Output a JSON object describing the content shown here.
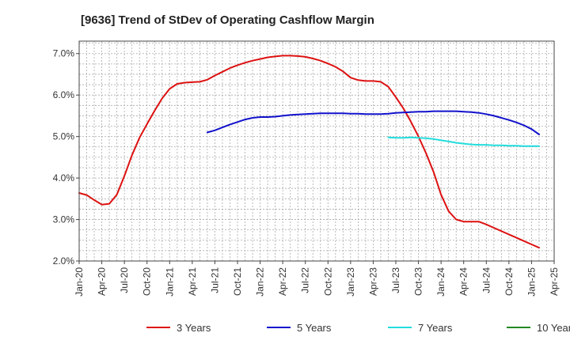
{
  "chart_data": {
    "type": "line",
    "title": "[9636]  Trend of StDev of Operating Cashflow Margin",
    "xlabel": "",
    "ylabel": "",
    "ylim": [
      2.0,
      7.3
    ],
    "yticks": [
      2.0,
      3.0,
      4.0,
      5.0,
      6.0,
      7.0
    ],
    "ytick_labels": [
      "2.0%",
      "3.0%",
      "4.0%",
      "5.0%",
      "6.0%",
      "7.0%"
    ],
    "xticks": [
      "Jan-20",
      "Apr-20",
      "Jul-20",
      "Oct-20",
      "Jan-21",
      "Apr-21",
      "Jul-21",
      "Oct-21",
      "Jan-22",
      "Apr-22",
      "Jul-22",
      "Oct-22",
      "Jan-23",
      "Apr-23",
      "Jul-23",
      "Oct-23",
      "Jan-24",
      "Apr-24",
      "Jul-24",
      "Oct-24",
      "Jan-25",
      "Apr-25"
    ],
    "grid": true,
    "legend_position": "bottom",
    "series": [
      {
        "name": "3 Years",
        "color": "#dd1111",
        "points": [
          [
            "Jan-20",
            3.64
          ],
          [
            "Feb-20",
            3.59
          ],
          [
            "Mar-20",
            3.47
          ],
          [
            "Apr-20",
            3.36
          ],
          [
            "May-20",
            3.38
          ],
          [
            "Jun-20",
            3.6
          ],
          [
            "Jul-20",
            4.05
          ],
          [
            "Aug-20",
            4.55
          ],
          [
            "Sep-20",
            4.97
          ],
          [
            "Oct-20",
            5.3
          ],
          [
            "Nov-20",
            5.62
          ],
          [
            "Dec-20",
            5.92
          ],
          [
            "Jan-21",
            6.15
          ],
          [
            "Feb-21",
            6.27
          ],
          [
            "Mar-21",
            6.3
          ],
          [
            "Apr-21",
            6.31
          ],
          [
            "May-21",
            6.32
          ],
          [
            "Jun-21",
            6.37
          ],
          [
            "Jul-21",
            6.47
          ],
          [
            "Aug-21",
            6.56
          ],
          [
            "Sep-21",
            6.65
          ],
          [
            "Oct-21",
            6.72
          ],
          [
            "Nov-21",
            6.78
          ],
          [
            "Dec-21",
            6.83
          ],
          [
            "Jan-22",
            6.87
          ],
          [
            "Feb-22",
            6.91
          ],
          [
            "Mar-22",
            6.93
          ],
          [
            "Apr-22",
            6.95
          ],
          [
            "May-22",
            6.95
          ],
          [
            "Jun-22",
            6.94
          ],
          [
            "Jul-22",
            6.92
          ],
          [
            "Aug-22",
            6.88
          ],
          [
            "Sep-22",
            6.83
          ],
          [
            "Oct-22",
            6.76
          ],
          [
            "Nov-22",
            6.68
          ],
          [
            "Dec-22",
            6.57
          ],
          [
            "Jan-23",
            6.42
          ],
          [
            "Feb-23",
            6.36
          ],
          [
            "Mar-23",
            6.34
          ],
          [
            "Apr-23",
            6.34
          ],
          [
            "May-23",
            6.32
          ],
          [
            "Jun-23",
            6.2
          ],
          [
            "Jul-23",
            5.95
          ],
          [
            "Aug-23",
            5.68
          ],
          [
            "Sep-23",
            5.36
          ],
          [
            "Oct-23",
            5.0
          ],
          [
            "Nov-23",
            4.6
          ],
          [
            "Dec-23",
            4.15
          ],
          [
            "Jan-24",
            3.6
          ],
          [
            "Feb-24",
            3.2
          ],
          [
            "Mar-24",
            3.0
          ],
          [
            "Apr-24",
            2.95
          ],
          [
            "May-24",
            2.95
          ],
          [
            "Jun-24",
            2.95
          ],
          [
            "Jul-24",
            2.88
          ],
          [
            "Aug-24",
            2.8
          ],
          [
            "Sep-24",
            2.72
          ],
          [
            "Oct-24",
            2.64
          ],
          [
            "Nov-24",
            2.56
          ],
          [
            "Dec-24",
            2.48
          ],
          [
            "Jan-25",
            2.4
          ],
          [
            "Feb-25",
            2.32
          ]
        ]
      },
      {
        "name": "5 Years",
        "color": "#1111cc",
        "points": [
          [
            "Jun-21",
            5.1
          ],
          [
            "Jul-21",
            5.15
          ],
          [
            "Aug-21",
            5.22
          ],
          [
            "Sep-21",
            5.29
          ],
          [
            "Oct-21",
            5.35
          ],
          [
            "Nov-21",
            5.41
          ],
          [
            "Dec-21",
            5.45
          ],
          [
            "Jan-22",
            5.47
          ],
          [
            "Feb-22",
            5.47
          ],
          [
            "Mar-22",
            5.48
          ],
          [
            "Apr-22",
            5.5
          ],
          [
            "May-22",
            5.52
          ],
          [
            "Jun-22",
            5.53
          ],
          [
            "Jul-22",
            5.54
          ],
          [
            "Aug-22",
            5.55
          ],
          [
            "Sep-22",
            5.56
          ],
          [
            "Oct-22",
            5.56
          ],
          [
            "Nov-22",
            5.56
          ],
          [
            "Dec-22",
            5.56
          ],
          [
            "Jan-23",
            5.55
          ],
          [
            "Feb-23",
            5.55
          ],
          [
            "Mar-23",
            5.54
          ],
          [
            "Apr-23",
            5.54
          ],
          [
            "May-23",
            5.54
          ],
          [
            "Jun-23",
            5.55
          ],
          [
            "Jul-23",
            5.57
          ],
          [
            "Aug-23",
            5.58
          ],
          [
            "Sep-23",
            5.59
          ],
          [
            "Oct-23",
            5.6
          ],
          [
            "Nov-23",
            5.6
          ],
          [
            "Dec-23",
            5.61
          ],
          [
            "Jan-24",
            5.61
          ],
          [
            "Feb-24",
            5.61
          ],
          [
            "Mar-24",
            5.61
          ],
          [
            "Apr-24",
            5.6
          ],
          [
            "May-24",
            5.59
          ],
          [
            "Jun-24",
            5.57
          ],
          [
            "Jul-24",
            5.54
          ],
          [
            "Aug-24",
            5.5
          ],
          [
            "Sep-24",
            5.45
          ],
          [
            "Oct-24",
            5.4
          ],
          [
            "Nov-24",
            5.34
          ],
          [
            "Dec-24",
            5.27
          ],
          [
            "Jan-25",
            5.18
          ],
          [
            "Feb-25",
            5.05
          ]
        ]
      },
      {
        "name": "7 Years",
        "color": "#22dddd",
        "points": [
          [
            "Jun-23",
            4.98
          ],
          [
            "Jul-23",
            4.97
          ],
          [
            "Aug-23",
            4.97
          ],
          [
            "Sep-23",
            4.98
          ],
          [
            "Oct-23",
            4.97
          ],
          [
            "Nov-23",
            4.96
          ],
          [
            "Dec-23",
            4.94
          ],
          [
            "Jan-24",
            4.91
          ],
          [
            "Feb-24",
            4.88
          ],
          [
            "Mar-24",
            4.85
          ],
          [
            "Apr-24",
            4.83
          ],
          [
            "May-24",
            4.81
          ],
          [
            "Jun-24",
            4.8
          ],
          [
            "Jul-24",
            4.8
          ],
          [
            "Aug-24",
            4.79
          ],
          [
            "Sep-24",
            4.79
          ],
          [
            "Oct-24",
            4.78
          ],
          [
            "Nov-24",
            4.78
          ],
          [
            "Dec-24",
            4.77
          ],
          [
            "Jan-25",
            4.77
          ],
          [
            "Feb-25",
            4.77
          ]
        ]
      },
      {
        "name": "10 Years",
        "color": "#228822",
        "points": []
      }
    ]
  }
}
